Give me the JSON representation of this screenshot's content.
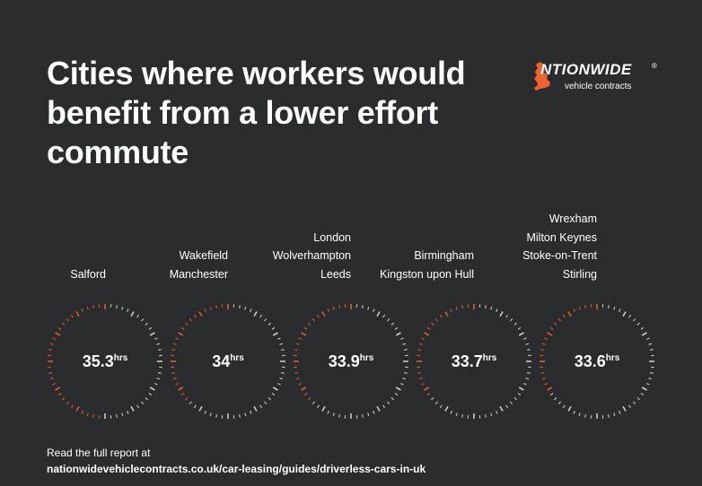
{
  "title": "Cities where workers would benefit from a lower effort commute",
  "logo": {
    "letter_n": "N",
    "word": "TIONWIDE",
    "registered": "®",
    "subtitle": "vehicle contracts"
  },
  "chart_data": {
    "type": "gauge",
    "unit": "hrs",
    "groups": [
      {
        "value": 35.3,
        "label": "35.3",
        "cities": [
          "Salford"
        ]
      },
      {
        "value": 34,
        "label": "34",
        "cities": [
          "Wakefield",
          "Manchester"
        ]
      },
      {
        "value": 33.9,
        "label": "33.9",
        "cities": [
          "London",
          "Wolverhampton",
          "Leeds"
        ]
      },
      {
        "value": 33.7,
        "label": "33.7",
        "cities": [
          "Birmingham",
          "Kingston upon Hull"
        ]
      },
      {
        "value": 33.6,
        "label": "33.6",
        "cities": [
          "Wrexham",
          "Milton Keynes",
          "Stoke-on-Trent",
          "Stirling"
        ]
      }
    ]
  },
  "footer": {
    "lead": "Read the full report at",
    "url": "nationwidevehiclecontracts.co.uk/car-leasing/guides/driverless-cars-in-uk"
  },
  "colors": {
    "background": "#2b2c2e",
    "accent": "#f2612e",
    "text": "#ffffff",
    "tick_inactive": "#ffffff"
  }
}
